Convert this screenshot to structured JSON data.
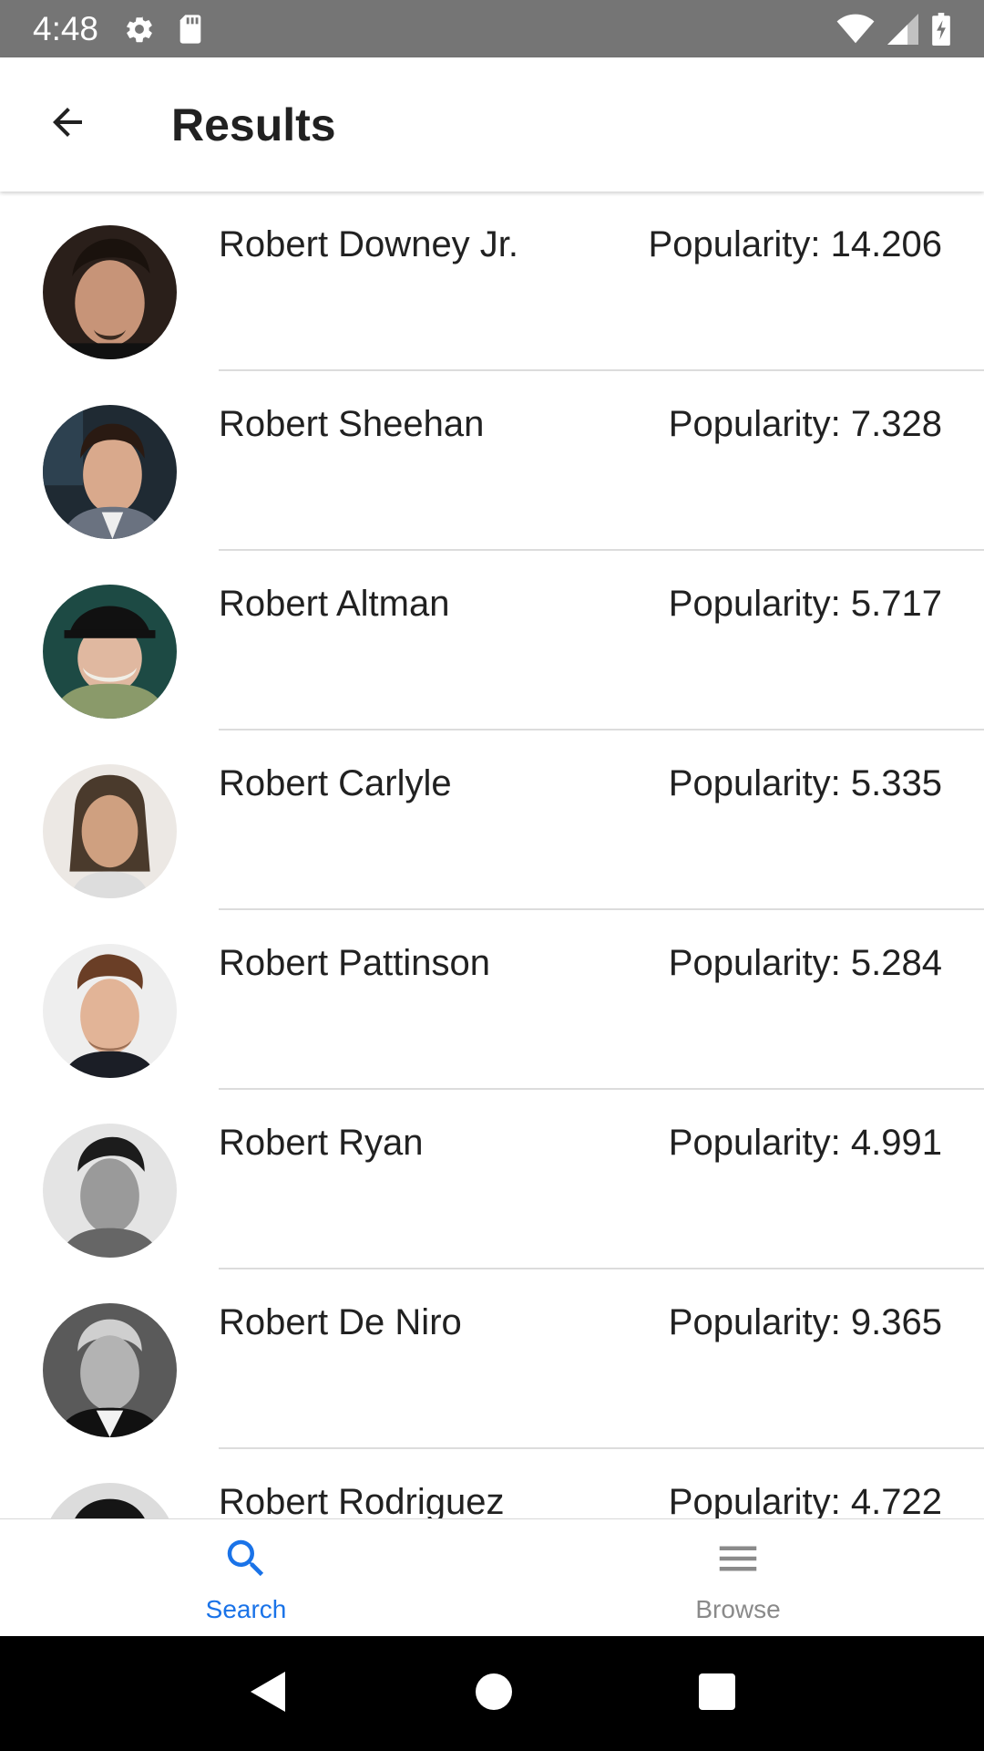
{
  "status_bar": {
    "time": "4:48",
    "icons": [
      "gear-icon",
      "sd-card-icon",
      "wifi-icon",
      "signal-icon",
      "battery-charging-icon"
    ]
  },
  "app_bar": {
    "back_icon": "arrow-back-icon",
    "title": "Results"
  },
  "results": [
    {
      "name": "Robert Downey Jr.",
      "popularity": "Popularity: 14.206"
    },
    {
      "name": "Robert Sheehan",
      "popularity": "Popularity: 7.328"
    },
    {
      "name": "Robert Altman",
      "popularity": "Popularity: 5.717"
    },
    {
      "name": "Robert Carlyle",
      "popularity": "Popularity: 5.335"
    },
    {
      "name": "Robert Pattinson",
      "popularity": "Popularity: 5.284"
    },
    {
      "name": "Robert Ryan",
      "popularity": "Popularity: 4.991"
    },
    {
      "name": "Robert De Niro",
      "popularity": "Popularity: 9.365"
    },
    {
      "name": "Robert Rodriguez",
      "popularity": "Popularity: 4.722"
    }
  ],
  "bottom_nav": {
    "tabs": [
      {
        "label": "Search",
        "icon": "search-icon",
        "active": true
      },
      {
        "label": "Browse",
        "icon": "menu-icon",
        "active": false
      }
    ]
  },
  "colors": {
    "accent": "#1a73e8",
    "status_bar": "#757575",
    "inactive": "#8a8a8a"
  }
}
